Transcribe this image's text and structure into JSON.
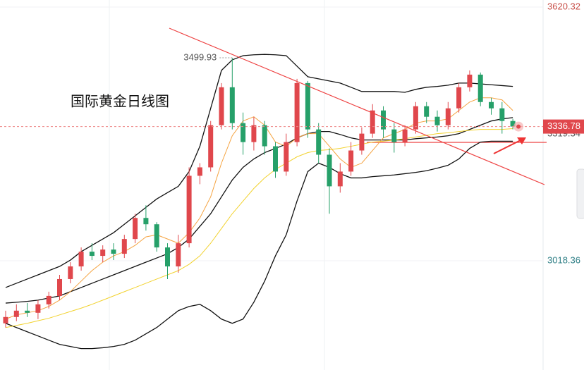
{
  "chart_data": {
    "type": "candlestick",
    "title": "国际黄金日线图",
    "ylim": [
      2759.24,
      3637.04
    ],
    "yticks": [
      3620.32,
      3018.36
    ],
    "price_levels": [
      3319.34
    ],
    "up_color": "#e0474c",
    "down_color": "#26a069",
    "candles": {
      "open": [
        2870,
        2885,
        2900,
        2895,
        2915,
        2935,
        2975,
        3005,
        3040,
        3030,
        3045,
        3035,
        3070,
        3120,
        3105,
        3050,
        3005,
        3060,
        3220,
        3240,
        3340,
        3430,
        3345,
        3300,
        3340,
        3290,
        3230,
        3300,
        3440,
        3330,
        3270,
        3195,
        3230,
        3280,
        3320,
        3375,
        3330,
        3300,
        3330,
        3385,
        3360,
        3340,
        3380,
        3430,
        3460,
        3395,
        3380,
        3350
      ],
      "high": [
        2900,
        2915,
        2918,
        2925,
        2945,
        2985,
        3015,
        3050,
        3060,
        3055,
        3060,
        3080,
        3130,
        3150,
        3110,
        3060,
        3080,
        3240,
        3250,
        3350,
        3440,
        3499.93,
        3370,
        3360,
        3350,
        3300,
        3320,
        3450,
        3445,
        3345,
        3285,
        3250,
        3300,
        3335,
        3390,
        3385,
        3345,
        3340,
        3395,
        3395,
        3375,
        3395,
        3440,
        3470,
        3465,
        3405,
        3395,
        3355
      ],
      "low": [
        2860,
        2875,
        2885,
        2880,
        2905,
        2925,
        2965,
        2995,
        3020,
        3015,
        3020,
        3025,
        3060,
        3090,
        3040,
        2975,
        2990,
        3050,
        3200,
        3230,
        3330,
        3330,
        3270,
        3280,
        3270,
        3215,
        3220,
        3290,
        3310,
        3250,
        3130,
        3180,
        3220,
        3270,
        3310,
        3310,
        3275,
        3290,
        3320,
        3345,
        3325,
        3330,
        3370,
        3420,
        3385,
        3365,
        3320,
        3330
      ],
      "close": [
        2885,
        2900,
        2895,
        2915,
        2935,
        2975,
        3005,
        3040,
        3030,
        3045,
        3035,
        3070,
        3120,
        3105,
        3050,
        3005,
        3060,
        3220,
        3240,
        3340,
        3430,
        3345,
        3300,
        3340,
        3290,
        3230,
        3300,
        3440,
        3330,
        3270,
        3195,
        3230,
        3280,
        3320,
        3375,
        3330,
        3300,
        3330,
        3385,
        3360,
        3340,
        3380,
        3430,
        3460,
        3395,
        3380,
        3350,
        3336.78
      ]
    },
    "series": [
      {
        "color": "#111111",
        "values": [
          2955,
          2965,
          2975,
          2985,
          2995,
          3005,
          3020,
          3040,
          3055,
          3070,
          3085,
          3105,
          3125,
          3145,
          3165,
          3180,
          3195,
          3230,
          3290,
          3380,
          3470,
          3495,
          3505,
          3507,
          3508,
          3507,
          3505,
          3480,
          3455,
          3450,
          3445,
          3440,
          3430,
          3420,
          3420,
          3420,
          3420,
          3418,
          3425,
          3430,
          3432,
          3435,
          3440,
          3440,
          3438,
          3436,
          3434,
          3432
        ]
      },
      {
        "color": "#111111",
        "values": [
          2918,
          2920,
          2922,
          2925,
          2930,
          2935,
          2945,
          2955,
          2965,
          2975,
          2985,
          2995,
          3005,
          3015,
          3025,
          3035,
          3050,
          3070,
          3100,
          3130,
          3170,
          3210,
          3240,
          3260,
          3275,
          3285,
          3295,
          3310,
          3320,
          3325,
          3325,
          3318,
          3310,
          3305,
          3305,
          3305,
          3305,
          3305,
          3308,
          3310,
          3312,
          3315,
          3320,
          3330,
          3340,
          3350,
          3355,
          3358
        ]
      },
      {
        "color": "#111111",
        "values": [
          2870,
          2860,
          2850,
          2840,
          2830,
          2820,
          2815,
          2810,
          2810,
          2812,
          2815,
          2820,
          2830,
          2845,
          2860,
          2880,
          2900,
          2910,
          2915,
          2900,
          2880,
          2870,
          2880,
          2920,
          2970,
          3030,
          3080,
          3160,
          3230,
          3250,
          3240,
          3225,
          3215,
          3215,
          3218,
          3220,
          3222,
          3225,
          3228,
          3232,
          3238,
          3245,
          3260,
          3285,
          3300,
          3302,
          3302,
          3302
        ]
      },
      {
        "color": "#f5a340",
        "values": [
          2880,
          2890,
          2895,
          2900,
          2910,
          2925,
          2945,
          2970,
          2995,
          3015,
          3030,
          3040,
          3055,
          3075,
          3080,
          3070,
          3060,
          3085,
          3120,
          3170,
          3250,
          3315,
          3350,
          3360,
          3340,
          3300,
          3290,
          3310,
          3320,
          3320,
          3290,
          3260,
          3240,
          3250,
          3280,
          3310,
          3320,
          3330,
          3345,
          3350,
          3350,
          3355,
          3375,
          3395,
          3405,
          3405,
          3400,
          3375
        ]
      },
      {
        "color": "#f2d22e",
        "values": [
          2860,
          2865,
          2870,
          2876,
          2882,
          2890,
          2898,
          2906,
          2915,
          2925,
          2935,
          2945,
          2955,
          2965,
          2975,
          2985,
          2995,
          3010,
          3030,
          3060,
          3095,
          3130,
          3160,
          3190,
          3215,
          3235,
          3250,
          3265,
          3275,
          3280,
          3282,
          3285,
          3290,
          3295,
          3300,
          3302,
          3305,
          3308,
          3312,
          3316,
          3320,
          3322,
          3325,
          3328,
          3330,
          3330,
          3330,
          3332
        ]
      }
    ]
  }
}
